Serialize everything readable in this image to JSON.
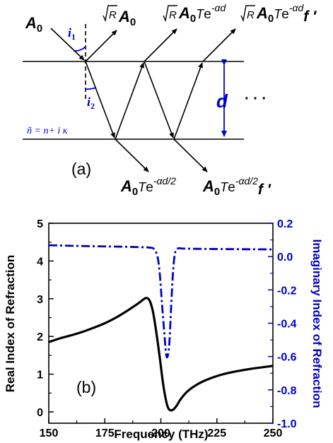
{
  "figure": {
    "panel_a": {
      "label": "(a)",
      "incident": {
        "base": "A",
        "sub": "0"
      },
      "reflected": {
        "root": "R",
        "base": "A",
        "sub": "0"
      },
      "transmitted_top": {
        "root": "R",
        "base": "A",
        "sub": "0",
        "mid": "T",
        "e": "e",
        "exp": "-αd"
      },
      "transmitted_top2": {
        "root": "R",
        "base": "A",
        "sub": "0",
        "mid": "T",
        "e": "e",
        "exp": "-αd",
        "tail": "f ′"
      },
      "exit_bottom1": {
        "base": "A",
        "sub": "0",
        "mid": "T",
        "e": "e",
        "exp": "-αd/2"
      },
      "exit_bottom2": {
        "base": "A",
        "sub": "0",
        "mid": "T",
        "e": "e",
        "exp": "-αd/2",
        "tail": "f ′"
      },
      "angle_i1": {
        "base": "i",
        "sub": "1"
      },
      "angle_i2": {
        "base": "i",
        "sub": "2"
      },
      "thickness": "d",
      "ellipsis": "· · ·",
      "index_formula": "ñ = n+ i κ",
      "colors": {
        "lines": "#000000",
        "annotation": "#0000cc"
      }
    },
    "panel_b": {
      "label": "(b)"
    }
  },
  "chart_data": {
    "type": "line",
    "xlabel": "Frequency (THz)",
    "ylabel": "Real Index of Refraction",
    "ylabel_right": "Imaginary Index of Refraction",
    "xlim": [
      150,
      250
    ],
    "ylim": [
      -0.3,
      5
    ],
    "ylim_right": [
      -1.0,
      0.2
    ],
    "x_ticks": [
      150,
      175,
      200,
      225,
      250
    ],
    "y_ticks": [
      0,
      1,
      2,
      3,
      4,
      5
    ],
    "y_ticks_right": [
      "0.2",
      "0.0",
      "-0.2",
      "-0.4",
      "-0.6",
      "-0.8",
      "-1.0"
    ],
    "grid": false,
    "series": [
      {
        "axis": "left",
        "color": "#000000",
        "style": "solid",
        "x": [
          150,
          155,
          160,
          165,
          170,
          175,
          180,
          185,
          188,
          190,
          192,
          193.5,
          195,
          196.5,
          198,
          199.5,
          201,
          202.5,
          203.5,
          204.5,
          205.5,
          207,
          209,
          212,
          216,
          220,
          225,
          230,
          235,
          240,
          245,
          250
        ],
        "values": [
          1.85,
          1.95,
          2.03,
          2.12,
          2.23,
          2.35,
          2.5,
          2.68,
          2.8,
          2.88,
          2.97,
          3.02,
          2.95,
          2.65,
          2.1,
          1.45,
          0.75,
          0.25,
          0.08,
          0.04,
          0.06,
          0.16,
          0.35,
          0.55,
          0.72,
          0.84,
          0.95,
          1.03,
          1.09,
          1.14,
          1.18,
          1.22
        ]
      },
      {
        "axis": "right",
        "color": "#0000cc",
        "style": "dashdot",
        "x": [
          150,
          160,
          170,
          180,
          190,
          195,
          197,
          198.5,
          199.5,
          200.5,
          201.5,
          202.3,
          203,
          203.8,
          204.6,
          205.5,
          206.5,
          208,
          210,
          220,
          230,
          240,
          250
        ],
        "values": [
          0.068,
          0.065,
          0.062,
          0.06,
          0.057,
          0.054,
          0.045,
          0.0,
          -0.1,
          -0.28,
          -0.45,
          -0.58,
          -0.6,
          -0.52,
          -0.3,
          -0.08,
          0.03,
          0.05,
          0.048,
          0.046,
          0.045,
          0.044,
          0.043
        ]
      }
    ]
  }
}
